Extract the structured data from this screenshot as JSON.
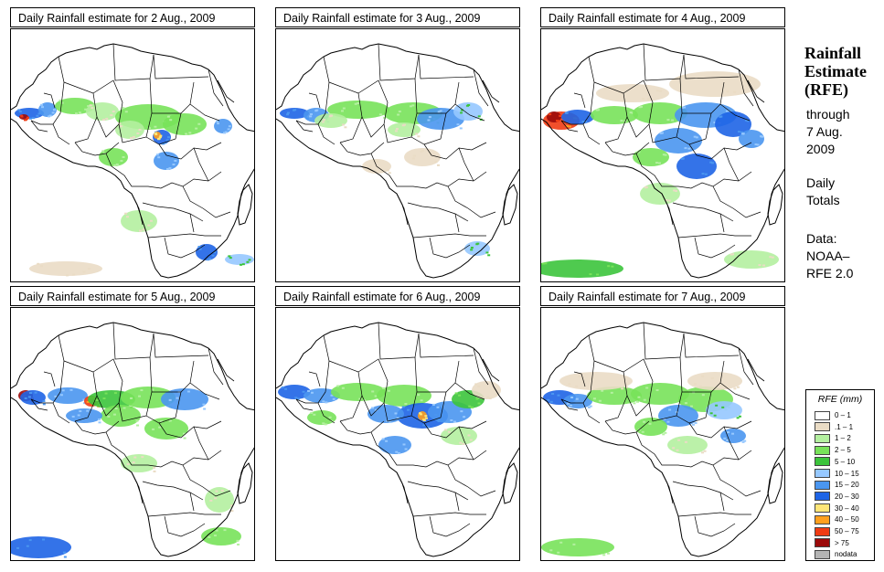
{
  "panels": [
    {
      "title": "Daily Rainfall estimate for  2 Aug., 2009",
      "date": "2 Aug., 2009"
    },
    {
      "title": "Daily Rainfall estimate for  3 Aug., 2009",
      "date": "3 Aug., 2009"
    },
    {
      "title": "Daily Rainfall estimate for  4 Aug., 2009",
      "date": "4 Aug., 2009"
    },
    {
      "title": "Daily Rainfall estimate for  5 Aug., 2009",
      "date": "5 Aug., 2009"
    },
    {
      "title": "Daily Rainfall estimate for  6 Aug., 2009",
      "date": "6 Aug., 2009"
    },
    {
      "title": "Daily Rainfall estimate for  7 Aug., 2009",
      "date": "7 Aug., 2009"
    }
  ],
  "side": {
    "title_line1": "Rainfall",
    "title_line2": "Estimate",
    "title_line3": "(RFE)",
    "through_label": "through",
    "through_date_line1": "7 Aug.",
    "through_date_line2": "2009",
    "totals_line1": "Daily",
    "totals_line2": "Totals",
    "data_line1": "Data:",
    "data_line2": "NOAA–",
    "data_line3": "RFE 2.0"
  },
  "legend": {
    "title": "RFE (mm)",
    "items": [
      {
        "label": "0 – 1",
        "color": "#ffffff"
      },
      {
        "label": ".1 – 1",
        "color": "#eadcc5"
      },
      {
        "label": "1 – 2",
        "color": "#b4f0a0"
      },
      {
        "label": "2 – 5",
        "color": "#78e25a"
      },
      {
        "label": "5 – 10",
        "color": "#3cc43c"
      },
      {
        "label": "10 – 15",
        "color": "#96c8ff"
      },
      {
        "label": "15 – 20",
        "color": "#4a96f0"
      },
      {
        "label": "20 – 30",
        "color": "#1e64e6"
      },
      {
        "label": "30 – 40",
        "color": "#ffe678"
      },
      {
        "label": "40 – 50",
        "color": "#ffa01e"
      },
      {
        "label": "50 – 75",
        "color": "#f03c14"
      },
      {
        "label": "> 75",
        "color": "#9b0a0a"
      },
      {
        "label": "nodata",
        "color": "#b4b4b4"
      }
    ]
  }
}
